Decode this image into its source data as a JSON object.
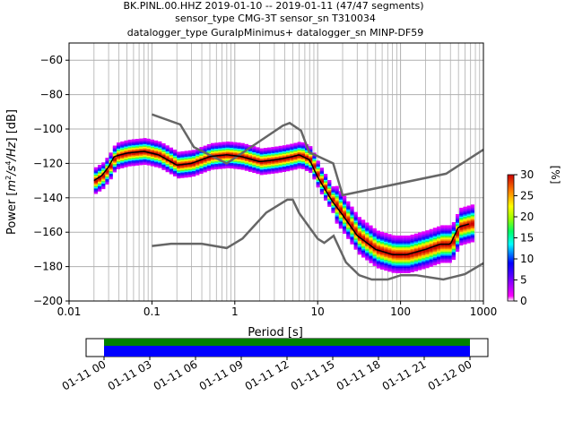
{
  "title_lines": [
    "BK.PINL.00.HHZ   2019-01-10 -- 2019-01-11  (47/47 segments)",
    "sensor_type CMG-3T sensor_sn T310034",
    "datalogger_type GuralpMinimus+ datalogger_sn MINP-DF59"
  ],
  "xlabel": "Period [s]",
  "ylabel_parts": [
    "Power [",
    "m",
    "2",
    "/s",
    "4",
    "/Hz",
    "] [dB]"
  ],
  "colorbar_label": "[%]",
  "colorbar_ticks": [
    "0",
    "5",
    "10",
    "15",
    "20",
    "25",
    "30"
  ],
  "x_ticks": [
    "0.01",
    "0.1",
    "1",
    "10",
    "100",
    "1000"
  ],
  "y_ticks": [
    "-200",
    "-180",
    "-160",
    "-140",
    "-120",
    "-100",
    "-80",
    "-60"
  ],
  "time_ticks": [
    "01-11 00",
    "01-11 03",
    "01-11 06",
    "01-11 09",
    "01-11 12",
    "01-11 15",
    "01-11 18",
    "01-11 21",
    "01-12 00"
  ],
  "colors": {
    "grid": "#b0b0b0",
    "noise_model": "#666666",
    "mean_line": "#000000",
    "coverage_green": "#008000",
    "coverage_blue": "#0000ff"
  },
  "chart_data": {
    "type": "heatmap",
    "x_scale": "log",
    "xlim": [
      0.01,
      1000
    ],
    "ylim": [
      -200,
      -50
    ],
    "colorbar_range_percent": [
      0,
      30
    ],
    "colormap": "pqlx",
    "mode_curve": {
      "period_s": [
        0.02,
        0.025,
        0.03,
        0.035,
        0.05,
        0.08,
        0.12,
        0.2,
        0.3,
        0.5,
        0.8,
        1.2,
        2,
        3,
        4,
        5,
        6,
        8,
        10,
        15,
        20,
        30,
        50,
        80,
        120,
        200,
        300,
        400,
        500,
        700
      ],
      "power_db": [
        -130,
        -127,
        -122,
        -116,
        -114,
        -113,
        -115,
        -121,
        -120,
        -116,
        -115,
        -116,
        -119,
        -118,
        -117,
        -116,
        -115,
        -118,
        -128,
        -142,
        -150,
        -162,
        -170,
        -173,
        -173,
        -170,
        -167,
        -167,
        -157,
        -155
      ]
    },
    "high_noise_model": {
      "period_s": [
        0.1,
        0.22,
        0.32,
        0.8,
        3.8,
        4.6,
        6.3,
        7.9,
        15.4,
        20,
        354.8,
        1000
      ],
      "power_db": [
        -91.5,
        -97.4,
        -110.5,
        -120,
        -98,
        -96.5,
        -101,
        -113.5,
        -120,
        -138.5,
        -126,
        -112
      ]
    },
    "low_noise_model": {
      "period_s": [
        0.1,
        0.17,
        0.4,
        0.8,
        1.24,
        2.4,
        4.3,
        5,
        6,
        10,
        12,
        15.6,
        21.9,
        31.6,
        45,
        70,
        101,
        154,
        328,
        600,
        1000
      ],
      "power_db": [
        -168,
        -166.7,
        -166.7,
        -169.2,
        -163.7,
        -148.6,
        -141.1,
        -141.1,
        -149,
        -163.8,
        -166.2,
        -162.1,
        -177.5,
        -185,
        -187.5,
        -187.5,
        -185,
        -185,
        -187.5,
        -184.4,
        -178
      ]
    },
    "time_coverage": {
      "start": "01-11 00",
      "end": "01-12 00",
      "segments": 47,
      "status": "complete"
    }
  }
}
